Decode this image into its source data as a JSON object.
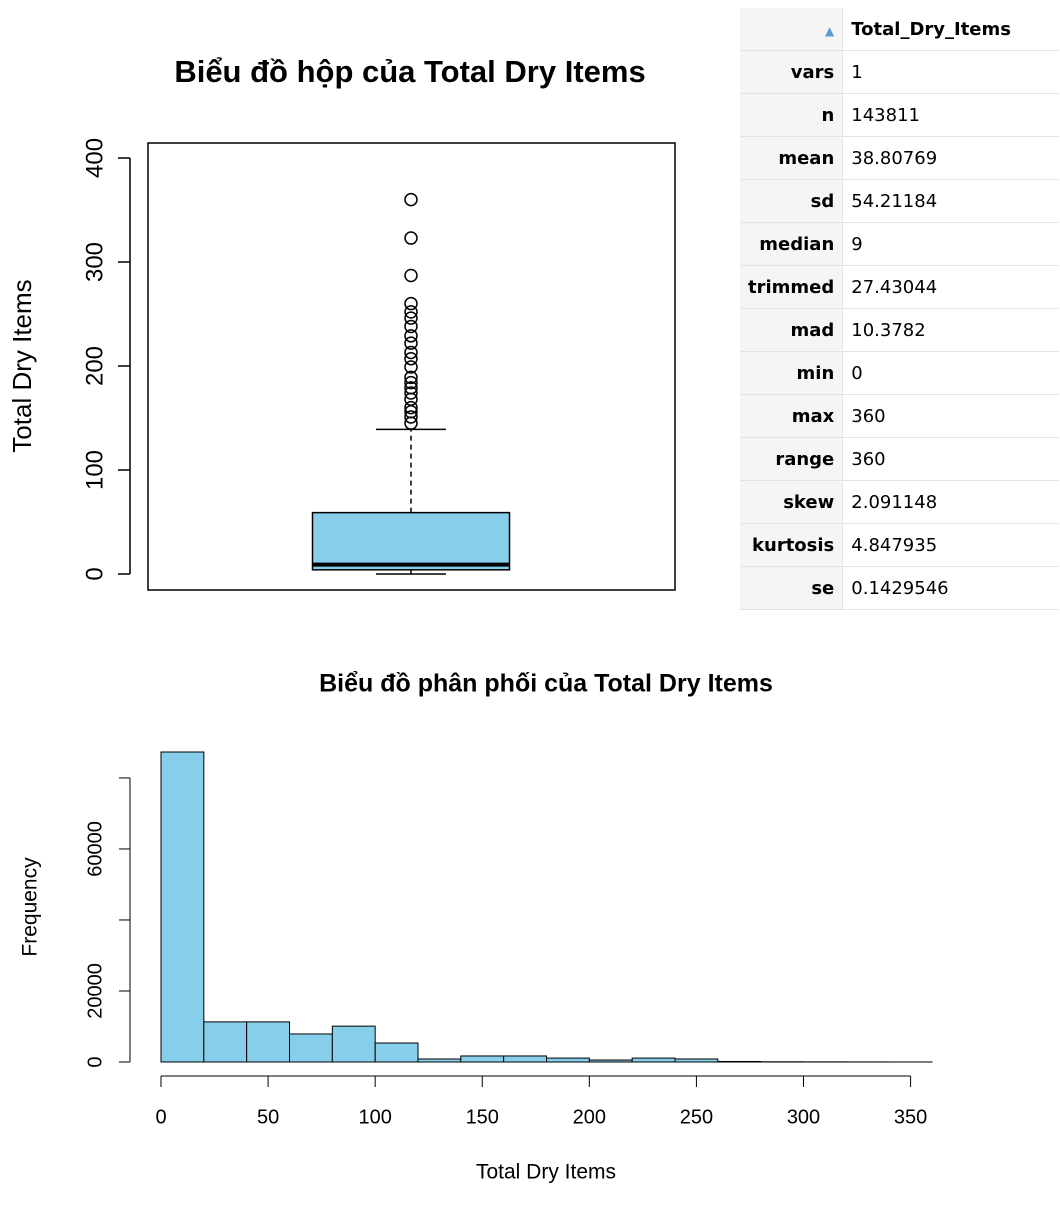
{
  "chart_data": [
    {
      "type": "box",
      "title": "Biểu đồ hộp của Total Dry Items",
      "y_label": "Total Dry Items",
      "color": "#87ceeb",
      "ylim": [
        -15.4,
        414.4
      ],
      "yticks": [
        0,
        100,
        200,
        300,
        400
      ],
      "whisker_low": 0,
      "q1": 4,
      "median": 9,
      "q3": 59,
      "whisker_high": 139,
      "outliers": [
        360,
        323,
        287,
        260,
        252,
        246,
        238,
        229,
        222,
        213,
        207,
        199,
        189,
        184,
        179,
        174,
        168,
        160,
        156,
        151,
        145
      ]
    },
    {
      "type": "histogram",
      "title": "Biểu đồ phân phối của Total Dry Items",
      "x_label": "Total Dry Items",
      "y_label": "Frequency",
      "color": "#87ceeb",
      "bins": [
        0,
        20,
        40,
        60,
        80,
        100,
        120,
        140,
        160,
        180,
        200,
        220,
        240,
        260,
        280,
        300,
        320,
        340,
        360
      ],
      "values": [
        87300,
        11300,
        11300,
        7900,
        10100,
        5350,
        850,
        1700,
        1700,
        1100,
        560,
        1100,
        850,
        150,
        60,
        40,
        20,
        10
      ],
      "xlim": [
        0,
        360
      ],
      "xticks": [
        0,
        50,
        100,
        150,
        200,
        250,
        300,
        350
      ],
      "ylim": [
        0,
        87300
      ],
      "yticks": [
        0,
        20000,
        {
          "value": 40000,
          "label": null
        },
        60000,
        {
          "value": 80000,
          "label": null
        }
      ]
    }
  ],
  "table": {
    "columns": [
      "Total_Dry_Items"
    ],
    "rows": [
      [
        "vars",
        1
      ],
      [
        "n",
        143811
      ],
      [
        "mean",
        38.80769
      ],
      [
        "sd",
        54.21184
      ],
      [
        "median",
        9
      ],
      [
        "trimmed",
        27.43044
      ],
      [
        "mad",
        10.3782
      ],
      [
        "min",
        0
      ],
      [
        "max",
        360
      ],
      [
        "range",
        360
      ],
      [
        "skew",
        2.091148
      ],
      [
        "kurtosis",
        4.847935
      ],
      [
        "se",
        0.1429546
      ]
    ]
  }
}
